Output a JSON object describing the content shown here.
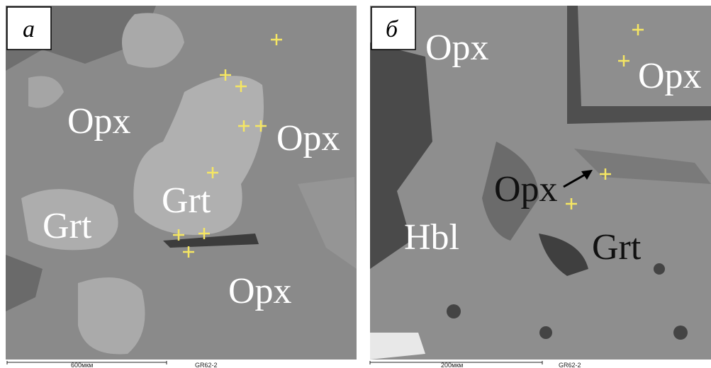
{
  "panels": [
    {
      "label": "а",
      "minerals": [
        "Opx",
        "Opx",
        "Opx",
        "Grt",
        "Grt"
      ],
      "scale": "600мкм",
      "sample": "GR62-2"
    },
    {
      "label": "б",
      "minerals": [
        "Opx",
        "Opx",
        "Opx",
        "Hbl",
        "Grt"
      ],
      "scale": "200мкм",
      "sample": "GR62-2"
    }
  ]
}
